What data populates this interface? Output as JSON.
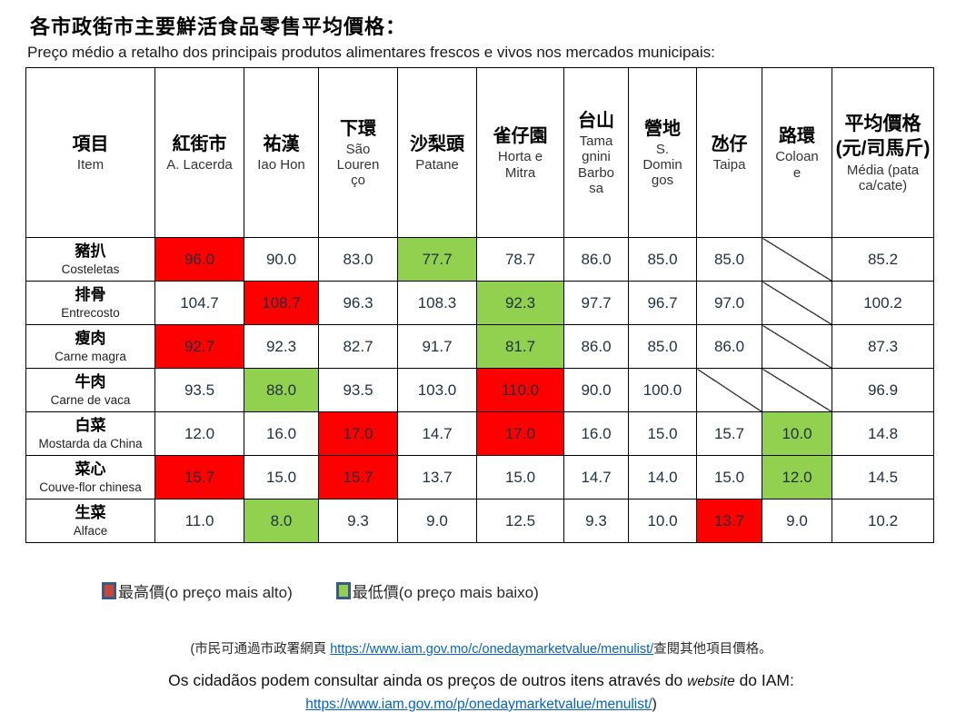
{
  "title": {
    "zh": "各市政街市主要鮮活食品零售平均價格：",
    "pt": "Preço médio a retalho dos principais produtos alimentares frescos e vivos nos mercados municipais:"
  },
  "colors": {
    "highest": "#FF0000",
    "lowest": "#92D050",
    "legend_highest_fill": "#C8473A",
    "legend_border": "#3A5A85",
    "link": "#0563C1"
  },
  "table": {
    "item_header": {
      "zh": "項目",
      "pt": "Item"
    },
    "markets": [
      {
        "zh": "紅街市",
        "pt": "A. Lacerda"
      },
      {
        "zh": "祐漢",
        "pt": "Iao Hon"
      },
      {
        "zh": "下環",
        "pt": "São Lourenço"
      },
      {
        "zh": "沙梨頭",
        "pt": "Patane"
      },
      {
        "zh": "雀仔園",
        "pt": "Horta e Mitra"
      },
      {
        "zh": "台山",
        "pt": "Tamagnini Barbosa"
      },
      {
        "zh": "營地",
        "pt": "S. Domingos"
      },
      {
        "zh": "氹仔",
        "pt": "Taipa"
      },
      {
        "zh": "路環",
        "pt": "Coloane"
      }
    ],
    "average_header": {
      "zh": "平均價格\n(元/司馬斤)",
      "pt": "Média (pataca/cate)"
    },
    "rows": [
      {
        "item": {
          "zh": "豬扒",
          "pt": "Costeletas"
        },
        "cells": [
          {
            "value": "96.0",
            "highlight": "highest"
          },
          {
            "value": "90.0",
            "highlight": null
          },
          {
            "value": "83.0",
            "highlight": null
          },
          {
            "value": "77.7",
            "highlight": "lowest"
          },
          {
            "value": "78.7",
            "highlight": null
          },
          {
            "value": "86.0",
            "highlight": null
          },
          {
            "value": "85.0",
            "highlight": null
          },
          {
            "value": "85.0",
            "highlight": null
          },
          {
            "value": null,
            "highlight": null
          }
        ],
        "average": "85.2"
      },
      {
        "item": {
          "zh": "排骨",
          "pt": "Entrecosto"
        },
        "cells": [
          {
            "value": "104.7",
            "highlight": null
          },
          {
            "value": "108.7",
            "highlight": "highest"
          },
          {
            "value": "96.3",
            "highlight": null
          },
          {
            "value": "108.3",
            "highlight": null
          },
          {
            "value": "92.3",
            "highlight": "lowest"
          },
          {
            "value": "97.7",
            "highlight": null
          },
          {
            "value": "96.7",
            "highlight": null
          },
          {
            "value": "97.0",
            "highlight": null
          },
          {
            "value": null,
            "highlight": null
          }
        ],
        "average": "100.2"
      },
      {
        "item": {
          "zh": "瘦肉",
          "pt": "Carne magra"
        },
        "cells": [
          {
            "value": "92.7",
            "highlight": "highest"
          },
          {
            "value": "92.3",
            "highlight": null
          },
          {
            "value": "82.7",
            "highlight": null
          },
          {
            "value": "91.7",
            "highlight": null
          },
          {
            "value": "81.7",
            "highlight": "lowest"
          },
          {
            "value": "86.0",
            "highlight": null
          },
          {
            "value": "85.0",
            "highlight": null
          },
          {
            "value": "86.0",
            "highlight": null
          },
          {
            "value": null,
            "highlight": null
          }
        ],
        "average": "87.3"
      },
      {
        "item": {
          "zh": "牛肉",
          "pt": "Carne de vaca"
        },
        "cells": [
          {
            "value": "93.5",
            "highlight": null
          },
          {
            "value": "88.0",
            "highlight": "lowest"
          },
          {
            "value": "93.5",
            "highlight": null
          },
          {
            "value": "103.0",
            "highlight": null
          },
          {
            "value": "110.0",
            "highlight": "highest"
          },
          {
            "value": "90.0",
            "highlight": null
          },
          {
            "value": "100.0",
            "highlight": null
          },
          {
            "value": null,
            "highlight": null
          },
          {
            "value": null,
            "highlight": null
          }
        ],
        "average": "96.9"
      },
      {
        "item": {
          "zh": "白菜",
          "pt": "Mostarda da China"
        },
        "cells": [
          {
            "value": "12.0",
            "highlight": null
          },
          {
            "value": "16.0",
            "highlight": null
          },
          {
            "value": "17.0",
            "highlight": "highest"
          },
          {
            "value": "14.7",
            "highlight": null
          },
          {
            "value": "17.0",
            "highlight": "highest"
          },
          {
            "value": "16.0",
            "highlight": null
          },
          {
            "value": "15.0",
            "highlight": null
          },
          {
            "value": "15.7",
            "highlight": null
          },
          {
            "value": "10.0",
            "highlight": "lowest"
          }
        ],
        "average": "14.8"
      },
      {
        "item": {
          "zh": "菜心",
          "pt": "Couve-flor chinesa"
        },
        "cells": [
          {
            "value": "15.7",
            "highlight": "highest"
          },
          {
            "value": "15.0",
            "highlight": null
          },
          {
            "value": "15.7",
            "highlight": "highest"
          },
          {
            "value": "13.7",
            "highlight": null
          },
          {
            "value": "15.0",
            "highlight": null
          },
          {
            "value": "14.7",
            "highlight": null
          },
          {
            "value": "14.0",
            "highlight": null
          },
          {
            "value": "15.0",
            "highlight": null
          },
          {
            "value": "12.0",
            "highlight": "lowest"
          }
        ],
        "average": "14.5"
      },
      {
        "item": {
          "zh": "生菜",
          "pt": "Alface"
        },
        "cells": [
          {
            "value": "11.0",
            "highlight": null
          },
          {
            "value": "8.0",
            "highlight": "lowest"
          },
          {
            "value": "9.3",
            "highlight": null
          },
          {
            "value": "9.0",
            "highlight": null
          },
          {
            "value": "12.5",
            "highlight": null
          },
          {
            "value": "9.3",
            "highlight": null
          },
          {
            "value": "10.0",
            "highlight": null
          },
          {
            "value": "13.7",
            "highlight": "highest"
          },
          {
            "value": "9.0",
            "highlight": null
          }
        ],
        "average": "10.2"
      }
    ]
  },
  "legend": {
    "highest": "最高價(o preço mais alto)",
    "lowest": "最低價(o preço mais baixo)"
  },
  "footer": {
    "zh_prefix": "(市民可通過市政署網頁 ",
    "zh_link": "https://www.iam.gov.mo/c/onedaymarketvalue/menulist/",
    "zh_suffix": "查閱其他項目價格。",
    "pt_before": "Os cidadãos podem consultar ainda os preços de outros itens através do ",
    "pt_italic": "website",
    "pt_after": " do IAM:",
    "pt_link": "https://www.iam.gov.mo/p/onedaymarketvalue/menulist/",
    "pt_close": ")"
  }
}
